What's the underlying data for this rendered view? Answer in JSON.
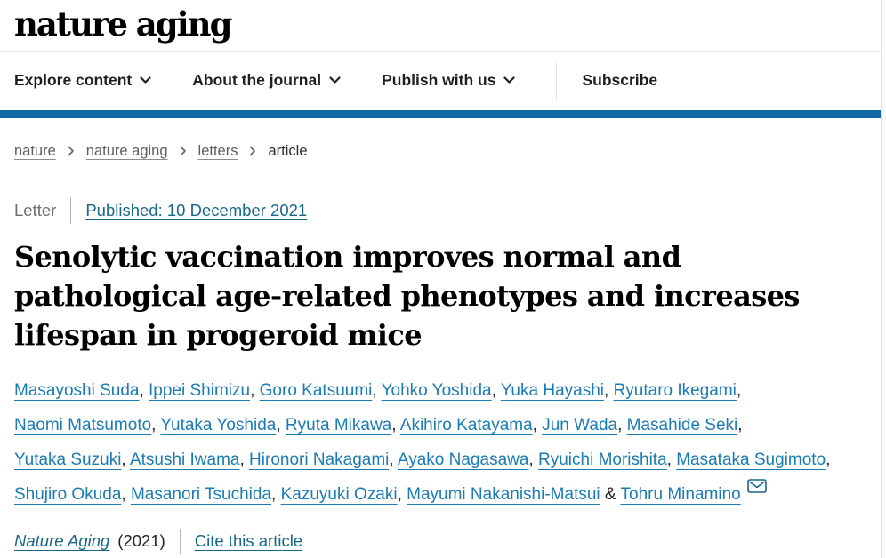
{
  "colors": {
    "brand_bar": "#1268a5",
    "author_link": "#1b7bb4",
    "teal_link": "#17678a",
    "breadcrumb_link": "#5d5d5d",
    "logo_text": "#000000"
  },
  "header": {
    "logo": "nature aging",
    "nav_items": [
      {
        "label": "Explore content",
        "has_dropdown": true
      },
      {
        "label": "About the journal",
        "has_dropdown": true
      },
      {
        "label": "Publish with us",
        "has_dropdown": true
      }
    ],
    "subscribe_label": "Subscribe"
  },
  "breadcrumb": {
    "items": [
      {
        "label": "nature",
        "is_link": true
      },
      {
        "label": "nature aging",
        "is_link": true
      },
      {
        "label": "letters",
        "is_link": true
      },
      {
        "label": "article",
        "is_link": false
      }
    ]
  },
  "article": {
    "type_label": "Letter",
    "published_link": "Published: 10 December 2021",
    "title_lines": [
      "Senolytic vaccination improves normal and",
      "pathological age-related phenotypes and increases",
      "lifespan in progeroid mice"
    ],
    "title": "Senolytic vaccination improves normal and pathological age-related phenotypes and increases lifespan in progeroid mice",
    "authors": [
      "Masayoshi Suda",
      "Ippei Shimizu",
      "Goro Katsuumi",
      "Yohko Yoshida",
      "Yuka Hayashi",
      "Ryutaro Ikegami",
      "Naomi Matsumoto",
      "Yutaka Yoshida",
      "Ryuta Mikawa",
      "Akihiro Katayama",
      "Jun Wada",
      "Masahide Seki",
      "Yutaka Suzuki",
      "Atsushi Iwama",
      "Hironori Nakagami",
      "Ayako Nagasawa",
      "Ryuichi Morishita",
      "Masataka Sugimoto",
      "Shujiro Okuda",
      "Masanori Tsuchida",
      "Kazuyuki Ozaki",
      "Mayumi Nakanishi-Matsui",
      "Tohru Minamino"
    ],
    "corresponding_author": "Tohru Minamino",
    "citation": {
      "journal": "Nature Aging",
      "year": "(2021)",
      "cite_link": "Cite this article"
    }
  }
}
